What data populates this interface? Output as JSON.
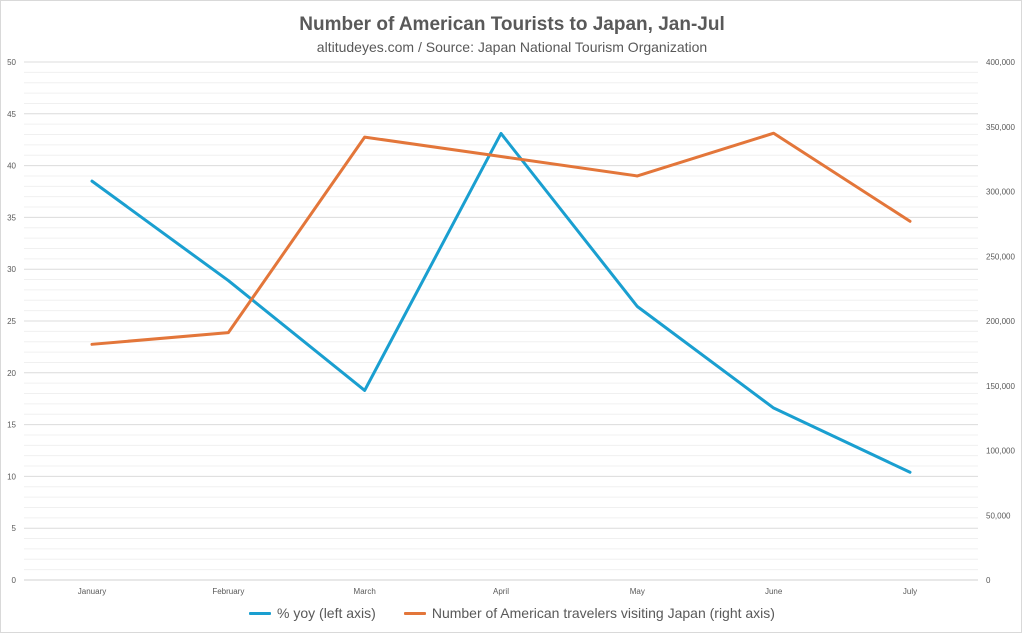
{
  "chart_data": {
    "type": "line",
    "title": "Number of American Tourists to Japan, Jan-Jul",
    "subtitle": "altitudeyes.com / Source: Japan National Tourism Organization",
    "categories": [
      "January",
      "February",
      "March",
      "April",
      "May",
      "June",
      "July"
    ],
    "y_left": {
      "ticks": [
        "0",
        "5",
        "10",
        "15",
        "20",
        "25",
        "30",
        "35",
        "40",
        "45",
        "50"
      ],
      "min": 0,
      "max": 50,
      "step": 5
    },
    "y_right": {
      "ticks": [
        "0",
        "50,000",
        "100,000",
        "150,000",
        "200,000",
        "250,000",
        "300,000",
        "350,000",
        "400,000"
      ],
      "min": 0,
      "max": 400000,
      "step": 50000
    },
    "series": [
      {
        "name": "% yoy (left axis)",
        "axis": "left",
        "color": "#1a9fd0",
        "values": [
          38.5,
          28.9,
          18.3,
          43.1,
          26.4,
          16.6,
          10.4
        ]
      },
      {
        "name": "Number of American travelers visiting Japan (right axis)",
        "axis": "right",
        "color": "#e3763a",
        "values": [
          182000,
          191000,
          342000,
          327000,
          312000,
          345000,
          277000
        ]
      }
    ],
    "grid": true,
    "legend_position": "bottom"
  }
}
